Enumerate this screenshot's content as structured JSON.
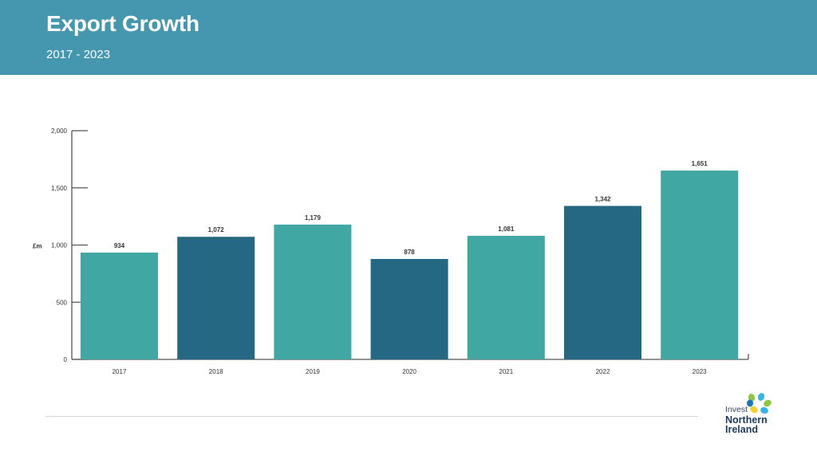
{
  "header": {
    "title": "Export Growth",
    "subtitle": "2017 - 2023"
  },
  "colors": {
    "header_bg": "#4497ae",
    "bar_teal": "#41a7a3",
    "bar_navy": "#246884"
  },
  "chart_data": {
    "type": "bar",
    "title": "",
    "xlabel": "",
    "ylabel": "£m",
    "categories": [
      "2017",
      "2018",
      "2019",
      "2020",
      "2021",
      "2022",
      "2023"
    ],
    "values": [
      934,
      1072,
      1179,
      878,
      1081,
      1342,
      1651
    ],
    "value_labels": [
      "934",
      "1,072",
      "1,179",
      "878",
      "1,081",
      "1,342",
      "1,651"
    ],
    "bar_colors": [
      "#41a7a3",
      "#246884",
      "#41a7a3",
      "#246884",
      "#41a7a3",
      "#246884",
      "#41a7a3"
    ],
    "ylim": [
      0,
      2000
    ],
    "yticks": [
      0,
      500,
      1000,
      1500,
      2000
    ],
    "ytick_labels": [
      "0",
      "500",
      "1,000",
      "1,500",
      "2,000"
    ],
    "grid": false,
    "legend": "none"
  },
  "logo": {
    "line1": "Invest",
    "line2": "Northern",
    "line3": "Ireland"
  }
}
